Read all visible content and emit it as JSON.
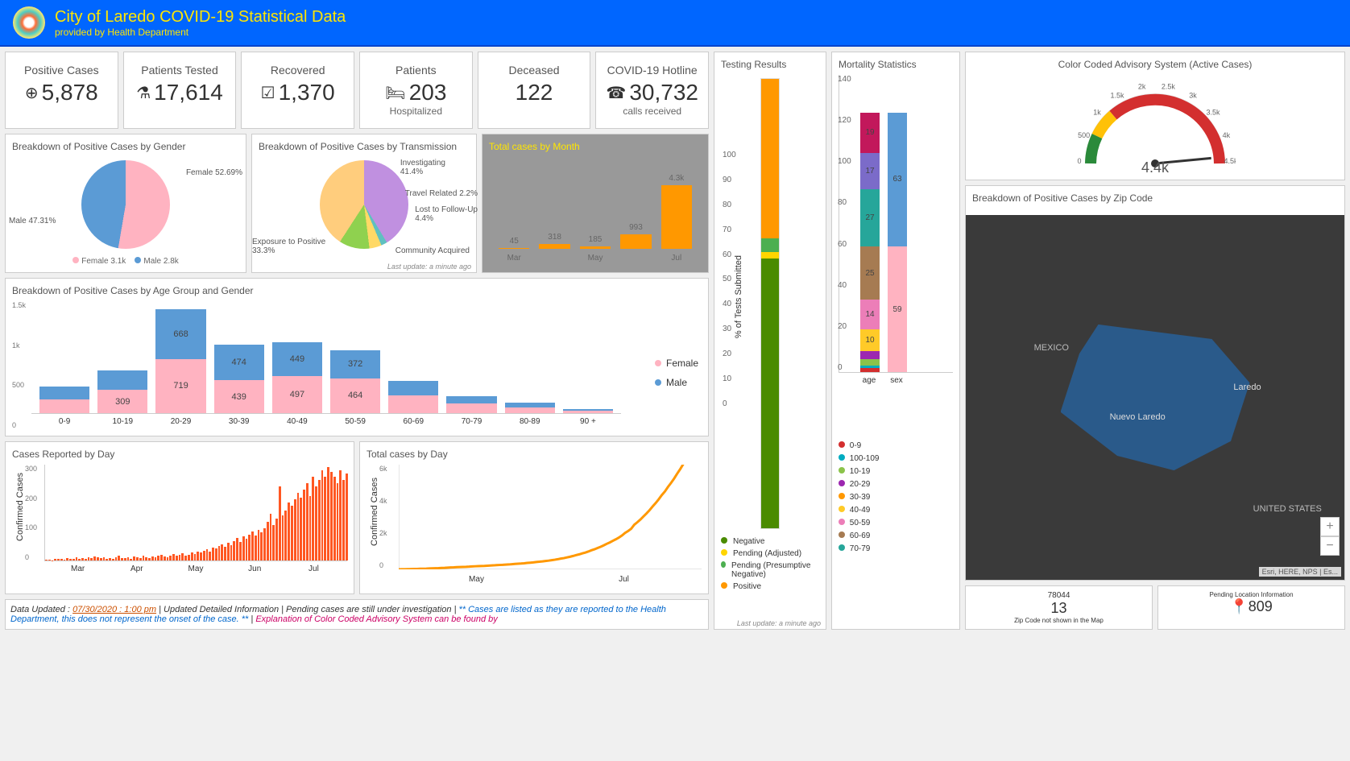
{
  "header": {
    "title": "City of Laredo COVID-19 Statistical Data",
    "subtitle": "provided by Health Department"
  },
  "cards": {
    "positive": {
      "title": "Positive Cases",
      "value": "5,878",
      "icon": "⊕"
    },
    "tested": {
      "title": "Patients Tested",
      "value": "17,614",
      "icon": "⚗"
    },
    "recovered": {
      "title": "Recovered",
      "value": "1,370",
      "icon": "☑"
    },
    "patients": {
      "title": "Patients",
      "value": "203",
      "sub": "Hospitalized",
      "icon": "🛏"
    },
    "deceased": {
      "title": "Deceased",
      "value": "122"
    },
    "hotline": {
      "title": "COVID-19 Hotline",
      "value": "30,732",
      "sub": "calls received",
      "icon": "☎"
    }
  },
  "gender": {
    "title": "Breakdown of Positive Cases by Gender",
    "female_pct": "Female 52.69%",
    "male_pct": "Male 47.31%",
    "female_legend": "Female",
    "female_count": "3.1k",
    "male_legend": "Male",
    "male_count": "2.8k",
    "colors": {
      "female": "#ffb3c1",
      "male": "#5b9bd5"
    }
  },
  "transmission": {
    "title": "Breakdown of Positive Cases by Transmission",
    "slices": {
      "investigating": {
        "label": "Investigating",
        "pct": "41.4%",
        "color": "#c090e0"
      },
      "travel": {
        "label": "Travel Related",
        "pct": "2.2%",
        "color": "#5fc0c0"
      },
      "followup": {
        "label": "Lost to Follow-Up",
        "pct": "4.4%",
        "color": "#ffd966"
      },
      "community": {
        "label": "Community Acquired",
        "color": "#8fd14f"
      },
      "exposure": {
        "label": "Exposure to Positive",
        "pct": "33.3%",
        "color": "#ffcd7d"
      }
    },
    "last_update": "Last update: a minute ago"
  },
  "monthly": {
    "title": "Total cases by Month",
    "background": "#999999",
    "y_max": 6000,
    "y_ticks": [
      "6,000",
      "4,000",
      "2,000",
      "0"
    ],
    "bars": [
      {
        "label": "Mar",
        "value": 45,
        "display": "45"
      },
      {
        "label": "",
        "value": 318,
        "display": "318"
      },
      {
        "label": "May",
        "value": 185,
        "display": "185"
      },
      {
        "label": "",
        "value": 993,
        "display": "993"
      },
      {
        "label": "Jul",
        "value": 4300,
        "display": "4.3k"
      }
    ],
    "bar_color": "#ff9800"
  },
  "age_gender": {
    "title": "Breakdown of Positive Cases by Age Group and Gender",
    "y_max": 1500,
    "y_ticks": [
      "1.5k",
      "1k",
      "500",
      "0"
    ],
    "groups": [
      {
        "label": "0-9",
        "female": 180,
        "male": 170
      },
      {
        "label": "10-19",
        "female": 309,
        "male": 260,
        "f_display": "309"
      },
      {
        "label": "20-29",
        "female": 719,
        "male": 668,
        "f_display": "719",
        "m_display": "668"
      },
      {
        "label": "30-39",
        "female": 439,
        "male": 474,
        "f_display": "439",
        "m_display": "474"
      },
      {
        "label": "40-49",
        "female": 497,
        "male": 449,
        "f_display": "497",
        "m_display": "449"
      },
      {
        "label": "50-59",
        "female": 464,
        "male": 372,
        "f_display": "464",
        "m_display": "372"
      },
      {
        "label": "60-69",
        "female": 240,
        "male": 190
      },
      {
        "label": "70-79",
        "female": 130,
        "male": 100
      },
      {
        "label": "80-89",
        "female": 80,
        "male": 60
      },
      {
        "label": "90 +",
        "female": 30,
        "male": 20
      }
    ],
    "legend": {
      "female": "Female",
      "male": "Male"
    },
    "colors": {
      "female": "#ffb3c1",
      "male": "#5b9bd5"
    }
  },
  "daily": {
    "title": "Cases Reported by Day",
    "ylabel": "Confirmed Cases",
    "y_max": 300,
    "y_ticks": [
      "300",
      "200",
      "100",
      "0"
    ],
    "x_labels": [
      "Mar",
      "Apr",
      "May",
      "Jun",
      "Jul"
    ],
    "bar_color": "#ff5722",
    "values": [
      2,
      3,
      1,
      5,
      4,
      6,
      3,
      8,
      5,
      4,
      9,
      6,
      7,
      5,
      10,
      8,
      12,
      9,
      7,
      11,
      6,
      8,
      5,
      10,
      14,
      8,
      7,
      9,
      6,
      12,
      10,
      8,
      14,
      9,
      7,
      12,
      10,
      15,
      18,
      12,
      9,
      14,
      20,
      15,
      17,
      22,
      14,
      18,
      25,
      20,
      28,
      24,
      30,
      35,
      28,
      40,
      38,
      45,
      50,
      42,
      55,
      48,
      60,
      70,
      58,
      75,
      68,
      80,
      90,
      78,
      95,
      88,
      100,
      120,
      145,
      110,
      130,
      230,
      140,
      155,
      180,
      170,
      190,
      210,
      195,
      220,
      240,
      200,
      260,
      230,
      250,
      280,
      260,
      290,
      275,
      260,
      240,
      280,
      250,
      270
    ]
  },
  "cumulative": {
    "title": "Total cases by Day",
    "ylabel": "Confirmed Cases",
    "y_max": 6000,
    "y_ticks": [
      "6k",
      "4k",
      "2k",
      "0"
    ],
    "x_labels": [
      "May",
      "Jul"
    ],
    "line_color": "#ff9800"
  },
  "testing": {
    "title": "Testing Results",
    "ylabel": "% of Tests Submitted",
    "y_ticks": [
      "100",
      "90",
      "80",
      "70",
      "60",
      "50",
      "40",
      "30",
      "20",
      "10",
      "0"
    ],
    "segments": [
      {
        "label": "Negative",
        "pct": 60,
        "color": "#4a8b00"
      },
      {
        "label": "Pending (Adjusted)",
        "pct": 1.5,
        "color": "#ffd500"
      },
      {
        "label": "Pending (Presumptive Negative)",
        "pct": 3,
        "color": "#4caf50"
      },
      {
        "label": "Positive",
        "pct": 35.5,
        "color": "#ff9800"
      }
    ],
    "last_update": "Last update: a minute ago"
  },
  "mortality": {
    "title": "Mortality Statistics",
    "y_max": 140,
    "y_ticks": [
      "140",
      "120",
      "100",
      "80",
      "60",
      "40",
      "20",
      "0"
    ],
    "bars": {
      "age": [
        {
          "label": "",
          "value": 2,
          "color": "#d32f2f"
        },
        {
          "label": "",
          "value": 1,
          "color": "#00acc1"
        },
        {
          "label": "",
          "value": 3,
          "color": "#8bc34a"
        },
        {
          "label": "",
          "value": 4,
          "color": "#9c27b0"
        },
        {
          "label": "10",
          "value": 10,
          "color": "#ffca28"
        },
        {
          "label": "14",
          "value": 14,
          "color": "#ec7eb8"
        },
        {
          "label": "25",
          "value": 25,
          "color": "#a67b52"
        },
        {
          "label": "27",
          "value": 27,
          "color": "#26a69a"
        },
        {
          "label": "17",
          "value": 17,
          "color": "#7b6bc9"
        },
        {
          "label": "19",
          "value": 19,
          "color": "#c2185b"
        }
      ],
      "sex": [
        {
          "label": "59",
          "value": 59,
          "color": "#ffb3c1"
        },
        {
          "label": "63",
          "value": 63,
          "color": "#5b9bd5"
        }
      ]
    },
    "x_labels": [
      "age",
      "sex"
    ],
    "legend": [
      {
        "label": "0-9",
        "color": "#d32f2f"
      },
      {
        "label": "100-109",
        "color": "#00acc1"
      },
      {
        "label": "10-19",
        "color": "#8bc34a"
      },
      {
        "label": "20-29",
        "color": "#9c27b0"
      },
      {
        "label": "30-39",
        "color": "#ff9800"
      },
      {
        "label": "40-49",
        "color": "#ffca28"
      },
      {
        "label": "50-59",
        "color": "#ec7eb8"
      },
      {
        "label": "60-69",
        "color": "#a67b52"
      },
      {
        "label": "70-79",
        "color": "#26a69a"
      }
    ]
  },
  "gauge": {
    "title": "Color Coded Advisory System (Active Cases)",
    "value": "4.4k",
    "ticks": [
      "0",
      "500",
      "1k",
      "1.5k",
      "2k",
      "2.5k",
      "3k",
      "3.5k",
      "4k",
      "4.5k"
    ],
    "needle_pct": 0.97,
    "colors": {
      "safe": "#2a8a3a",
      "warn": "#ffc107",
      "danger": "#d32f2f"
    }
  },
  "map": {
    "title": "Breakdown of Positive Cases by Zip Code",
    "labels": {
      "laredo": "Laredo",
      "nuevo": "Nuevo Laredo",
      "mexico": "MEXICO",
      "usa": "UNITED STATES"
    },
    "attribution": "Esri, HERE, NPS | Es...",
    "bottom": {
      "zip": {
        "label": "78044",
        "value": "13",
        "sub": "Zip Code not shown in the Map"
      },
      "pending": {
        "label": "Pending Location Information",
        "value": "809",
        "icon": "📍"
      }
    }
  },
  "footer": {
    "prefix": "Data Updated : ",
    "updated": "07/30/2020 : 1:00 pm",
    "mid": "  | Updated Detailed Information | Pending cases are still under investigation | ",
    "blue": "** Cases are listed as they are reported to the Health Department, this does not represent the onset of the case. ** ",
    "pink_prefix": "| ",
    "pink": "Explanation of Color Coded Advisory System can be found by"
  }
}
